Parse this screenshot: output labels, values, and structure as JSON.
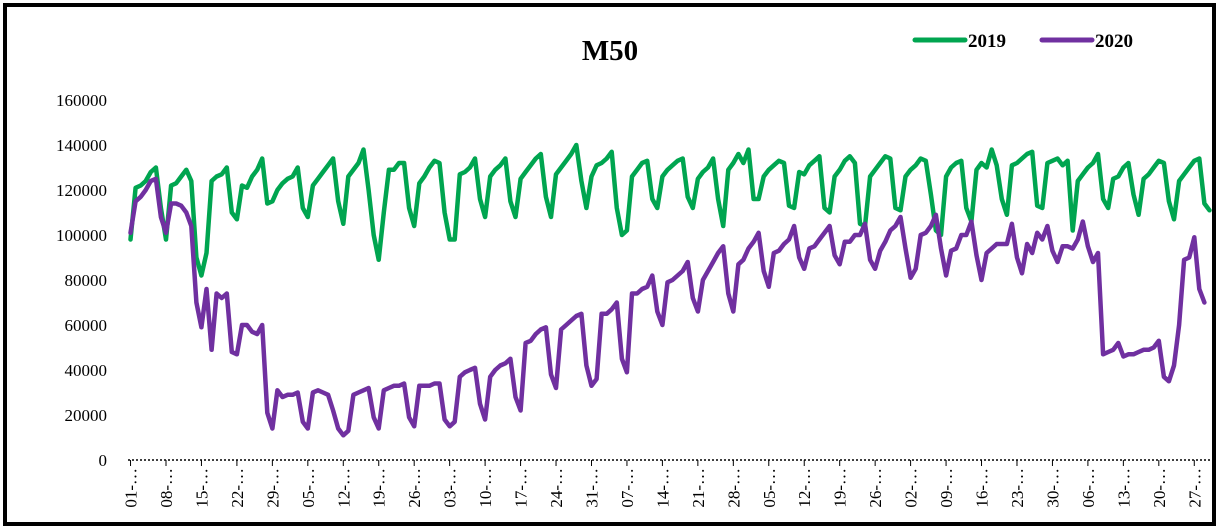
{
  "chart_data": {
    "type": "line",
    "title": "M50",
    "xlabel": "",
    "ylabel": "",
    "ylim": [
      0,
      160000
    ],
    "yticks": [
      0,
      20000,
      40000,
      60000,
      80000,
      100000,
      120000,
      140000,
      160000
    ],
    "ytick_labels": [
      "0",
      "20000",
      "40000",
      "60000",
      "80000",
      "100000",
      "120000",
      "140000",
      "160000"
    ],
    "xtick_labels": [
      "01-…",
      "08-…",
      "15-…",
      "22-…",
      "29-…",
      "05-…",
      "12-…",
      "19-…",
      "26-…",
      "03-…",
      "10-…",
      "17-…",
      "24-…",
      "31-…",
      "07-…",
      "14-…",
      "21-…",
      "28-…",
      "05-…",
      "12-…",
      "19-…",
      "26-…",
      "02-…",
      "09-…",
      "16-…",
      "23-…",
      "30-…",
      "06-…",
      "13-…",
      "20-…",
      "27-…"
    ],
    "grid": false,
    "legend": "top-right",
    "series": [
      {
        "name": "2019",
        "color": "#00a550",
        "values": [
          98000,
          121000,
          122000,
          124000,
          128000,
          130000,
          112000,
          98000,
          122000,
          123000,
          126000,
          129000,
          124000,
          90000,
          82000,
          92000,
          124000,
          126000,
          127000,
          130000,
          110000,
          107000,
          122000,
          121000,
          126000,
          129000,
          134000,
          114000,
          115000,
          120000,
          123000,
          125000,
          126000,
          130000,
          112000,
          108000,
          122000,
          125000,
          128000,
          131000,
          134000,
          115000,
          105000,
          126000,
          129000,
          132000,
          138000,
          120000,
          100000,
          89000,
          110000,
          129000,
          129000,
          132000,
          132000,
          112000,
          104000,
          123000,
          126000,
          130000,
          133000,
          132000,
          110000,
          98000,
          98000,
          127000,
          128000,
          130000,
          134000,
          116000,
          108000,
          126000,
          129000,
          131000,
          134000,
          115000,
          108000,
          125000,
          128000,
          131000,
          134000,
          136000,
          117000,
          108000,
          127000,
          130000,
          133000,
          136000,
          140000,
          124000,
          112000,
          126000,
          131000,
          132000,
          134000,
          137000,
          112000,
          100000,
          102000,
          126000,
          129000,
          132000,
          133000,
          116000,
          112000,
          126000,
          129000,
          131000,
          133000,
          134000,
          117000,
          112000,
          125000,
          128000,
          130000,
          134000,
          116000,
          104000,
          129000,
          132000,
          136000,
          132000,
          138000,
          116000,
          116000,
          126000,
          129000,
          131000,
          133000,
          132000,
          113000,
          112000,
          128000,
          127000,
          131000,
          133000,
          135000,
          112000,
          110000,
          126000,
          129000,
          133000,
          135000,
          132000,
          105000,
          104000,
          126000,
          129000,
          132000,
          135000,
          134000,
          112000,
          111000,
          126000,
          129000,
          131000,
          134000,
          133000,
          118000,
          102000,
          100000,
          126000,
          130000,
          132000,
          133000,
          112000,
          106000,
          129000,
          132000,
          130000,
          138000,
          131000,
          116000,
          109000,
          131000,
          132000,
          134000,
          136000,
          137000,
          113000,
          112000,
          132000,
          133000,
          134000,
          131000,
          133000,
          102000,
          124000,
          127000,
          130000,
          132000,
          136000,
          116000,
          112000,
          125000,
          126000,
          130000,
          132000,
          118000,
          109000,
          125000,
          127000,
          130000,
          133000,
          132000,
          115000,
          107000,
          124000,
          127000,
          130000,
          133000,
          134000,
          114000,
          111000
        ]
      },
      {
        "name": "2020",
        "color": "#7030a0",
        "values": [
          101000,
          115000,
          117000,
          120000,
          124000,
          125000,
          108000,
          101000,
          114000,
          114000,
          113000,
          110000,
          104000,
          70000,
          59000,
          76000,
          49000,
          74000,
          72000,
          74000,
          48000,
          47000,
          60000,
          60000,
          57000,
          56000,
          60000,
          21000,
          14000,
          31000,
          28000,
          29000,
          29000,
          30000,
          17000,
          14000,
          30000,
          31000,
          30000,
          29000,
          22000,
          14000,
          11000,
          13000,
          29000,
          30000,
          31000,
          32000,
          19000,
          14000,
          31000,
          32000,
          33000,
          33000,
          34000,
          19000,
          15000,
          33000,
          33000,
          33000,
          34000,
          34000,
          18000,
          15000,
          17000,
          37000,
          39000,
          40000,
          41000,
          25000,
          18000,
          37000,
          40000,
          42000,
          43000,
          45000,
          28000,
          22000,
          52000,
          53000,
          56000,
          58000,
          59000,
          38000,
          32000,
          58000,
          60000,
          62000,
          64000,
          65000,
          42000,
          33000,
          36000,
          65000,
          65000,
          67000,
          70000,
          45000,
          39000,
          74000,
          74000,
          76000,
          77000,
          82000,
          66000,
          60000,
          79000,
          80000,
          82000,
          84000,
          88000,
          72000,
          66000,
          80000,
          84000,
          88000,
          92000,
          95000,
          74000,
          66000,
          87000,
          89000,
          94000,
          97000,
          101000,
          84000,
          77000,
          92000,
          93000,
          96000,
          98000,
          104000,
          90000,
          85000,
          94000,
          95000,
          98000,
          101000,
          104000,
          91000,
          87000,
          97000,
          97000,
          100000,
          100000,
          105000,
          89000,
          85000,
          93000,
          97000,
          102000,
          104000,
          108000,
          94000,
          81000,
          85000,
          100000,
          101000,
          104000,
          109000,
          94000,
          82000,
          93000,
          94000,
          100000,
          100000,
          106000,
          91000,
          80000,
          92000,
          94000,
          96000,
          96000,
          96000,
          105000,
          90000,
          83000,
          96000,
          92000,
          101000,
          98000,
          104000,
          93000,
          88000,
          95000,
          95000,
          94000,
          98000,
          106000,
          95000,
          88000,
          92000,
          47000,
          48000,
          49000,
          52000,
          46000,
          47000,
          47000,
          48000,
          49000,
          49000,
          50000,
          53000,
          37000,
          35000,
          42000,
          60000,
          89000,
          90000,
          99000,
          76000,
          70000
        ]
      }
    ]
  }
}
